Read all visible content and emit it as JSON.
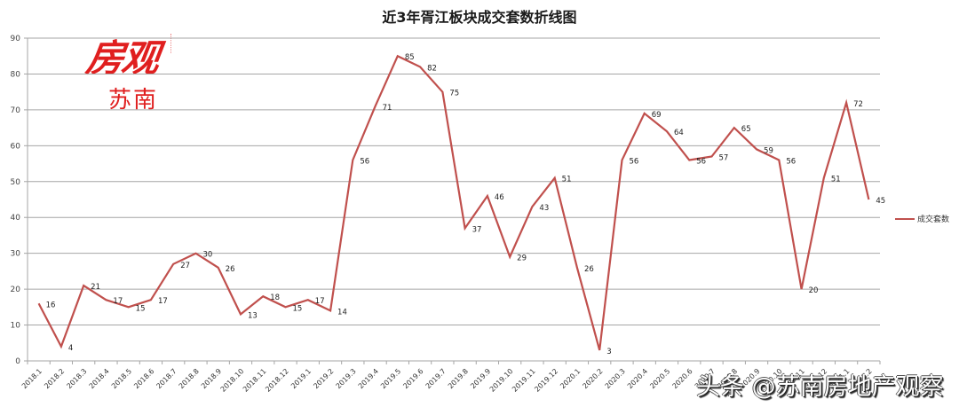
{
  "title": "近3年胥江板块成交套数折线图",
  "logo": {
    "line1": "房观",
    "line2": "苏南"
  },
  "watermark": "头条 @苏南房地产观察",
  "legend": {
    "label": "成交套数",
    "color": "#c0504d"
  },
  "colors": {
    "line": "#c0504d",
    "grid": "#a6a6a6",
    "axis": "#a6a6a6"
  },
  "chart_data": {
    "type": "line",
    "title": "近3年胥江板块成交套数折线图",
    "xlabel": "",
    "ylabel": "",
    "ylim": [
      0,
      90
    ],
    "yticks": [
      0,
      10,
      20,
      30,
      40,
      50,
      60,
      70,
      80,
      90
    ],
    "grid": true,
    "legend_position": "right",
    "categories": [
      "2018.1",
      "2018.2",
      "2018.3",
      "2018.4",
      "2018.5",
      "2018.6",
      "2018.7",
      "2018.8",
      "2018.9",
      "2018.10",
      "2018.11",
      "2018.12",
      "2019.1",
      "2019.2",
      "2019.3",
      "2019.4",
      "2019.5",
      "2019.6",
      "2019.7",
      "2019.8",
      "2019.9",
      "2019.10",
      "2019.11",
      "2019.12",
      "2020.1",
      "2020.2",
      "2020.3",
      "2020.4",
      "2020.5",
      "2020.6",
      "2020.7",
      "2020.8",
      "2020.9",
      "2020.10",
      "2020.11",
      "2020.12",
      "2021.1",
      "2021.2"
    ],
    "series": [
      {
        "name": "成交套数",
        "values": [
          16,
          4,
          21,
          17,
          15,
          17,
          27,
          30,
          26,
          13,
          18,
          15,
          17,
          14,
          56,
          71,
          85,
          82,
          75,
          37,
          46,
          29,
          43,
          51,
          26,
          3,
          56,
          69,
          64,
          56,
          57,
          65,
          59,
          56,
          20,
          51,
          72,
          45
        ]
      }
    ]
  }
}
